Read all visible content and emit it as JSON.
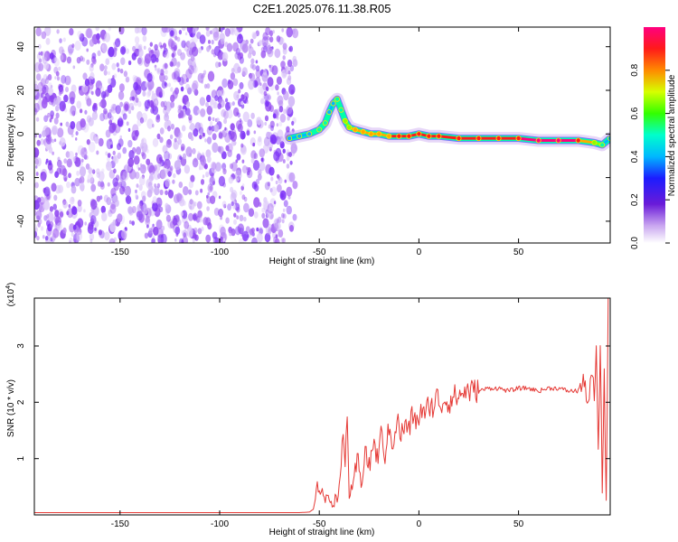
{
  "figure_title": "C2E1.2025.076.11.38.R05",
  "colors": {
    "snr_line": "#e53935",
    "spectro_noise": "#7b2ff7",
    "frame": "#000000"
  },
  "chart_data": [
    {
      "type": "heatmap",
      "title": "C2E1.2025.076.11.38.R05",
      "xlabel": "Height of straight line (km)",
      "ylabel": "Frequency (Hz)",
      "xlim": [
        -193,
        96
      ],
      "ylim": [
        -50,
        49
      ],
      "xticks": [
        "-150",
        "-100",
        "-50",
        "0",
        "50"
      ],
      "xtick_values": [
        -150,
        -100,
        -50,
        0,
        50
      ],
      "yticks": [
        "-40",
        "-20",
        "0",
        "20",
        "40"
      ],
      "ytick_values": [
        -40,
        -20,
        0,
        20,
        40
      ],
      "noise_region_x": [
        -193,
        -62
      ],
      "ridge": {
        "x": [
          -65,
          -60,
          -55,
          -50,
          -47,
          -45,
          -43,
          -41,
          -39,
          -37,
          -35,
          -32,
          -28,
          -24,
          -20,
          -15,
          -10,
          -5,
          0,
          5,
          10,
          20,
          30,
          40,
          50,
          60,
          70,
          80,
          88,
          92,
          96
        ],
        "y": [
          -2,
          -1,
          0,
          2,
          5,
          10,
          14,
          16,
          11,
          6,
          3,
          2,
          1,
          0,
          0,
          -1,
          -1,
          -1,
          0,
          -1,
          -1,
          -2,
          -2,
          -2,
          -2,
          -3,
          -3,
          -3,
          -4,
          -5,
          -2
        ],
        "amp": [
          0.25,
          0.35,
          0.4,
          0.55,
          0.45,
          0.4,
          0.4,
          0.45,
          0.5,
          0.6,
          0.7,
          0.75,
          0.8,
          0.8,
          0.85,
          0.85,
          0.9,
          0.9,
          0.9,
          0.9,
          0.92,
          0.95,
          0.95,
          0.95,
          0.95,
          0.98,
          0.98,
          0.95,
          0.7,
          0.5,
          0.3
        ]
      },
      "colorbar": {
        "label": "Normalized spectral amplitude",
        "range": [
          0,
          1
        ],
        "ticks": [
          "0.0",
          "0.2",
          "0.4",
          "0.6",
          "0.8"
        ],
        "tick_values": [
          0,
          0.2,
          0.4,
          0.6,
          0.8
        ]
      }
    },
    {
      "type": "line",
      "xlabel": "Height of straight line (km)",
      "ylabel": "SNR (10 * v/v)",
      "yscale_label": "(x10^4)",
      "xlim": [
        -193,
        96
      ],
      "ylim": [
        0,
        3.85
      ],
      "xticks": [
        "-150",
        "-100",
        "-50",
        "0",
        "50"
      ],
      "xtick_values": [
        -150,
        -100,
        -50,
        0,
        50
      ],
      "yticks": [
        "1",
        "2",
        "3"
      ],
      "ytick_values": [
        1,
        2,
        3
      ],
      "series": [
        {
          "x": [
            -193,
            -60,
            -55,
            -53,
            -51,
            -49,
            -47,
            -45,
            -43,
            -41,
            -39,
            -38,
            -37,
            -36,
            -35,
            -33,
            -31,
            -29,
            -27,
            -25,
            -23,
            -21,
            -19,
            -17,
            -15,
            -13,
            -11,
            -9,
            -7,
            -5,
            -3,
            -1,
            1,
            3,
            5,
            7,
            9,
            11,
            13,
            15,
            17,
            20,
            23,
            26,
            30,
            35,
            40,
            45,
            50,
            55,
            60,
            65,
            70,
            75,
            80,
            83,
            85,
            87,
            88,
            89,
            90,
            91,
            92,
            93,
            94,
            95
          ],
          "y": [
            0.04,
            0.04,
            0.05,
            0.1,
            0.45,
            0.5,
            0.25,
            0.3,
            0.2,
            0.35,
            0.7,
            1.5,
            0.8,
            1.9,
            0.35,
            0.45,
            1.0,
            0.55,
            1.2,
            0.8,
            1.3,
            1.0,
            1.4,
            1.1,
            1.5,
            1.3,
            1.7,
            1.4,
            1.6,
            1.5,
            1.8,
            1.6,
            1.9,
            1.7,
            2.0,
            1.9,
            2.1,
            1.95,
            2.05,
            2.0,
            2.1,
            2.1,
            2.2,
            2.2,
            2.2,
            2.25,
            2.25,
            2.2,
            2.25,
            2.25,
            2.2,
            2.25,
            2.25,
            2.2,
            2.2,
            2.35,
            2.0,
            2.5,
            2.1,
            2.9,
            1.0,
            3.05,
            0.5,
            2.5,
            0.2,
            3.9
          ]
        }
      ]
    }
  ]
}
